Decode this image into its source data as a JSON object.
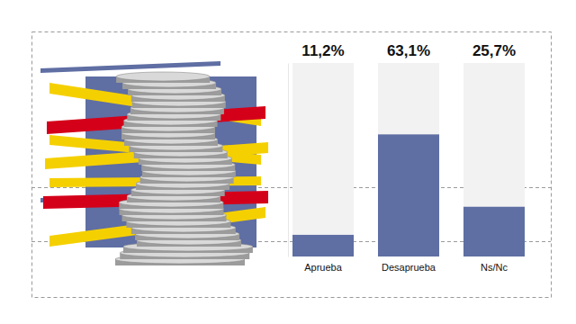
{
  "chart_data": {
    "type": "bar",
    "categories": [
      "Aprueba",
      "Desaprueba",
      "Ns/Nc"
    ],
    "values": [
      11.2,
      63.1,
      25.7
    ],
    "value_labels": [
      "11,2%",
      "63,1%",
      "25,7%"
    ],
    "color": "#5f6ea3",
    "ylim": [
      0,
      100
    ],
    "data_labels": true,
    "tick_labels": "x"
  }
}
